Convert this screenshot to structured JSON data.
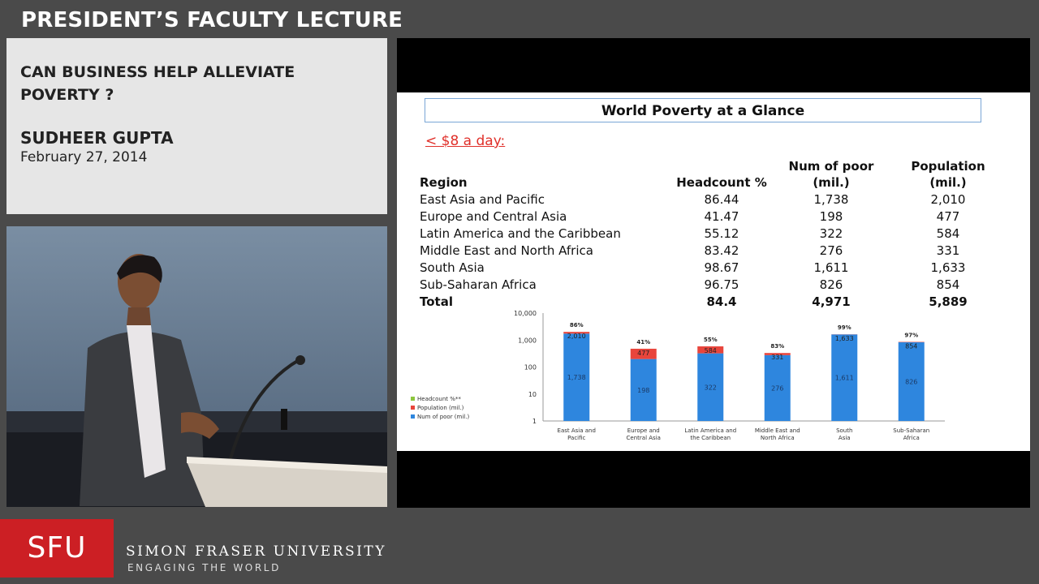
{
  "header": {
    "title": "PRESIDENT’S FACULTY LECTURE"
  },
  "info": {
    "talk_title": "CAN BUSINESS HELP ALLEVIATE POVERTY ?",
    "speaker": "SUDHEER GUPTA",
    "date": "February 27, 2014"
  },
  "slide": {
    "title": "World Poverty at a Glance",
    "subheading": "< $8 a day:",
    "table": {
      "headers": {
        "region": "Region",
        "headcount": "Headcount %",
        "poor_line1": "Num of poor",
        "poor_line2": "(mil.)",
        "pop_line1": "Population",
        "pop_line2": "(mil.)"
      },
      "rows": [
        {
          "region": "East Asia and Pacific",
          "headcount": "86.44",
          "poor": "1,738",
          "population": "2,010"
        },
        {
          "region": "Europe and Central Asia",
          "headcount": "41.47",
          "poor": "198",
          "population": "477"
        },
        {
          "region": "Latin America and the Caribbean",
          "headcount": "55.12",
          "poor": "322",
          "population": "584"
        },
        {
          "region": "Middle East and North Africa",
          "headcount": "83.42",
          "poor": "276",
          "population": "331"
        },
        {
          "region": "South Asia",
          "headcount": "98.67",
          "poor": "1,611",
          "population": "1,633"
        },
        {
          "region": "Sub-Saharan Africa",
          "headcount": "96.75",
          "poor": "826",
          "population": "854"
        }
      ],
      "total": {
        "region": "Total",
        "headcount": "84.4",
        "poor": "4,971",
        "population": "5,889"
      }
    }
  },
  "chart_data": {
    "type": "bar",
    "yscale": "log",
    "ylim": [
      1,
      10000
    ],
    "ytick_labels": [
      "10,000",
      "1,000",
      "100",
      "10",
      "1"
    ],
    "categories": [
      "East Asia and Pacific",
      "Europe and Central Asia",
      "Latin America and the Caribbean",
      "Middle East and North Africa",
      "South Asia",
      "Sub-Saharan Africa"
    ],
    "series": [
      {
        "name": "Headcount %**",
        "values": [
          86,
          41,
          55,
          83,
          99,
          97
        ],
        "labels": [
          "86%",
          "41%",
          "55%",
          "83%",
          "99%",
          "97%"
        ],
        "color": "#8dc63f"
      },
      {
        "name": "Population (mil.)",
        "values": [
          2010,
          477,
          584,
          331,
          1633,
          854
        ],
        "labels": [
          "2,010",
          "477",
          "584",
          "331",
          "1,633",
          "854"
        ],
        "color": "#e8453c"
      },
      {
        "name": "Num of poor (mil.)",
        "values": [
          1738,
          198,
          322,
          276,
          1611,
          826
        ],
        "labels": [
          "1,738",
          "198",
          "322",
          "276",
          "1,611",
          "826"
        ],
        "color": "#2e86de"
      }
    ],
    "legend_position": "left"
  },
  "footer": {
    "logo_text": "SFU",
    "university": "SIMON FRASER UNIVERSITY",
    "tagline": "ENGAGING THE WORLD",
    "brand_color": "#cc1f24"
  }
}
